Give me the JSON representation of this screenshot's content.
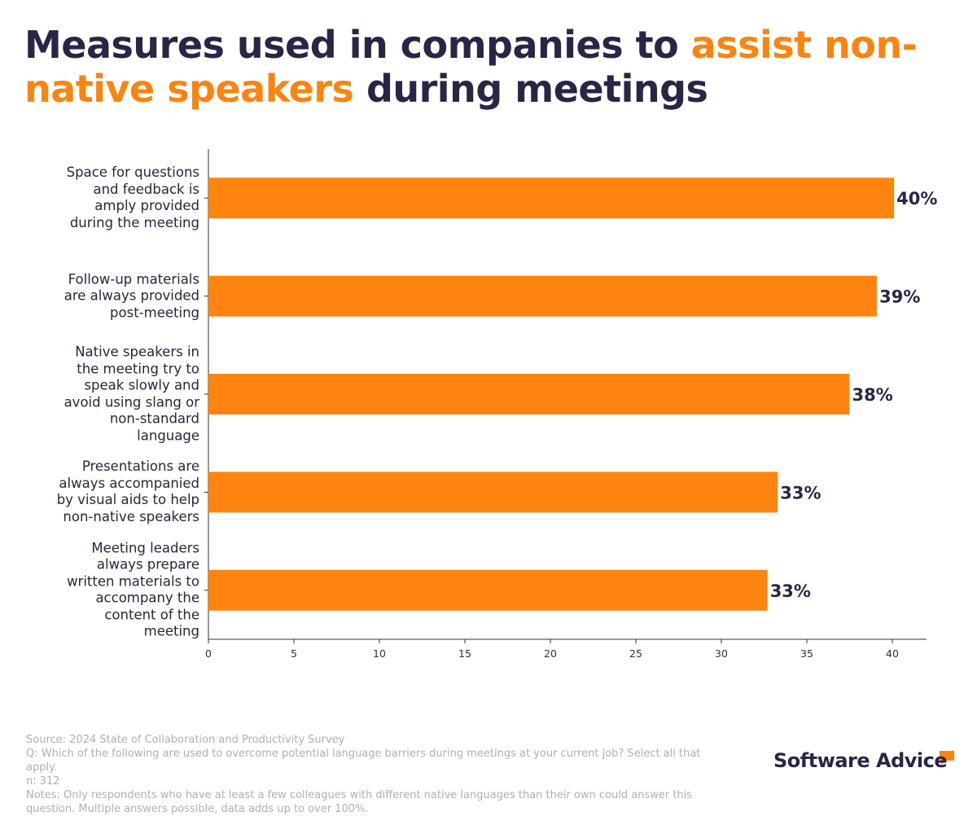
{
  "chart_data": {
    "type": "barh",
    "title": [
      "Measures used in companies to",
      "assist non-native speakers",
      "during meetings"
    ],
    "title_highlight_color": "#fb8410",
    "categories": [
      "Space for questions and feedback is amply provided during the meeting",
      "Follow-up materials are always provided post-meeting",
      "Native speakers in the meeting try to speak slowly and avoid using slang or non-standard language",
      "Presentations are always accompanied by visual aids to help non-native speakers",
      "Meeting leaders always prepare written materials to accompany the content of the meeting"
    ],
    "values": [
      40.1,
      39.1,
      37.5,
      33.3,
      32.7
    ],
    "value_labels": [
      "40%",
      "39%",
      "38%",
      "33%",
      "33%"
    ],
    "color": "#fd8410",
    "xlim": [
      0,
      42
    ],
    "xticks": [
      0,
      5,
      10,
      15,
      20,
      25,
      30,
      35,
      40
    ],
    "grid": false,
    "footnotes": [
      "Source: 2024 State of Collaboration and Productivity Survey",
      "Q: Which of the following are used to overcome potential language barriers during meetings at your current job? Select all that apply.",
      "n: 312",
      "Notes: Only respondents who have at least a few colleagues with different native languages than their own could answer this question. Multiple answers possible, data adds up to over 100%."
    ],
    "brand": "Software Advice"
  }
}
